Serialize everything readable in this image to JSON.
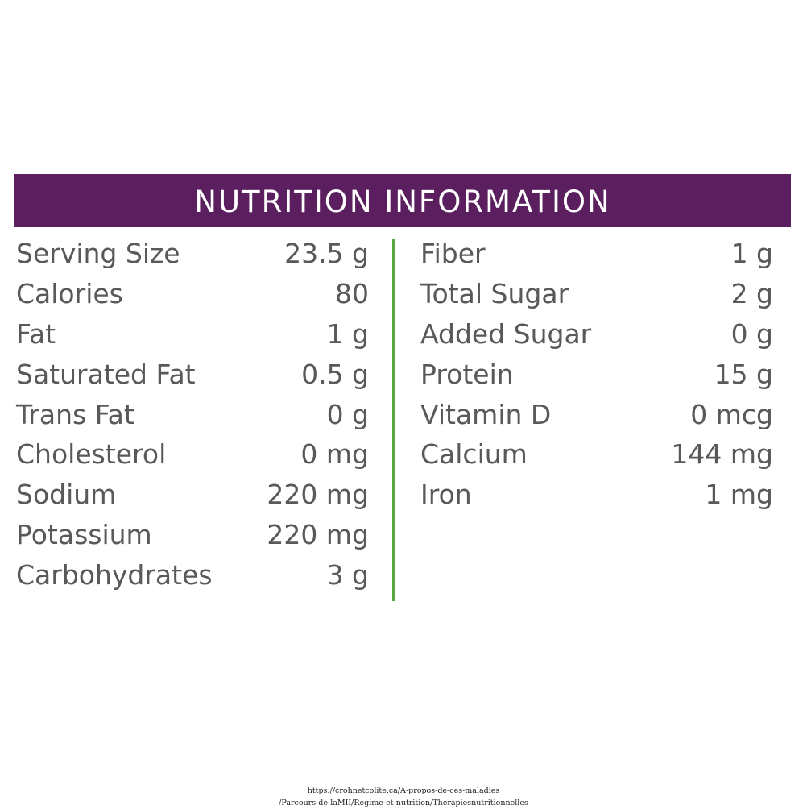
{
  "header": {
    "title": "NUTRITION INFORMATION"
  },
  "colors": {
    "header_bg": "#5b1f5f",
    "divider": "#5aa840",
    "text": "#595959"
  },
  "left_column": [
    {
      "label": "Serving Size",
      "value": "23.5 g"
    },
    {
      "label": "Calories",
      "value": "80"
    },
    {
      "label": "Fat",
      "value": "1 g"
    },
    {
      "label": "Saturated Fat",
      "value": "0.5 g"
    },
    {
      "label": "Trans Fat",
      "value": "0 g"
    },
    {
      "label": "Cholesterol",
      "value": "0 mg"
    },
    {
      "label": "Sodium",
      "value": "220 mg"
    },
    {
      "label": "Potassium",
      "value": "220 mg"
    },
    {
      "label": "Carbohydrates",
      "value": "3 g"
    }
  ],
  "right_column": [
    {
      "label": "Fiber",
      "value": "1 g"
    },
    {
      "label": "Total Sugar",
      "value": "2 g"
    },
    {
      "label": "Added Sugar",
      "value": "0 g"
    },
    {
      "label": "Protein",
      "value": "15 g"
    },
    {
      "label": "Vitamin D",
      "value": "0 mcg"
    },
    {
      "label": "Calcium",
      "value": "144 mg"
    },
    {
      "label": "Iron",
      "value": "1 mg"
    }
  ],
  "source": {
    "line1": "https://crohnetcolite.ca/A-propos-de-ces-maladies",
    "line2": "/Parcours-de-laMII/Regime-et-nutrition/Therapiesnutritionnelles"
  }
}
